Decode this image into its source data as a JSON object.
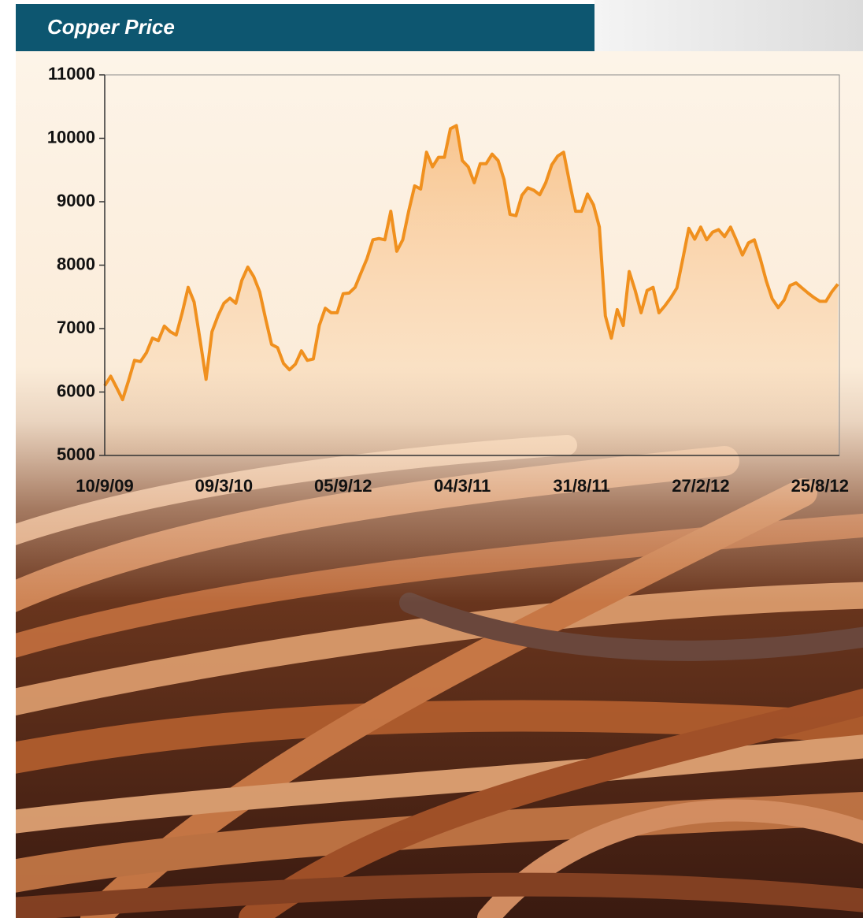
{
  "chart_data": {
    "type": "line",
    "title": "Copper Price",
    "categories": [
      "10/9/09",
      null,
      null,
      null,
      null,
      null,
      null,
      null,
      null,
      null,
      null,
      null,
      null,
      null,
      null,
      null,
      null,
      null,
      null,
      null,
      "09/3/10",
      null,
      null,
      null,
      null,
      null,
      null,
      null,
      null,
      null,
      null,
      null,
      null,
      null,
      null,
      null,
      null,
      null,
      null,
      null,
      "05/9/12",
      null,
      null,
      null,
      null,
      null,
      null,
      null,
      null,
      null,
      null,
      null,
      null,
      null,
      null,
      null,
      null,
      null,
      null,
      null,
      "04/3/11",
      null,
      null,
      null,
      null,
      null,
      null,
      null,
      null,
      null,
      null,
      null,
      null,
      null,
      null,
      null,
      null,
      null,
      null,
      null,
      "31/8/11",
      null,
      null,
      null,
      null,
      null,
      null,
      null,
      null,
      null,
      null,
      null,
      null,
      null,
      null,
      null,
      null,
      null,
      null,
      null,
      "27/2/12",
      null,
      null,
      null,
      null,
      null,
      null,
      null,
      null,
      null,
      null,
      null,
      null,
      null,
      null,
      null,
      null,
      null,
      null,
      null,
      "25/8/12",
      null,
      null,
      null
    ],
    "values": [
      6100,
      6250,
      6070,
      5880,
      6180,
      6500,
      6480,
      6620,
      6850,
      6810,
      7040,
      6950,
      6900,
      7250,
      7650,
      7420,
      6820,
      6200,
      6950,
      7200,
      7400,
      7480,
      7400,
      7760,
      7970,
      7820,
      7580,
      7150,
      6750,
      6700,
      6450,
      6350,
      6440,
      6650,
      6500,
      6520,
      7050,
      7320,
      7250,
      7250,
      7550,
      7560,
      7650,
      7880,
      8100,
      8400,
      8420,
      8400,
      8850,
      8220,
      8400,
      8850,
      9250,
      9200,
      9780,
      9550,
      9700,
      9700,
      10150,
      10200,
      9650,
      9550,
      9300,
      9600,
      9600,
      9750,
      9650,
      9350,
      8800,
      8780,
      9100,
      9220,
      9180,
      9110,
      9300,
      9580,
      9720,
      9780,
      9300,
      8850,
      8850,
      9120,
      8950,
      8600,
      7200,
      6850,
      7300,
      7050,
      7900,
      7600,
      7250,
      7600,
      7650,
      7250,
      7360,
      7490,
      7640,
      8100,
      8580,
      8410,
      8600,
      8400,
      8520,
      8560,
      8450,
      8600,
      8390,
      8160,
      8350,
      8400,
      8100,
      7750,
      7470,
      7330,
      7450,
      7680,
      7720,
      7640,
      7560,
      7490,
      7430,
      7430,
      7580,
      7700
    ],
    "color": "#f0901e",
    "ylim": [
      5000,
      11000
    ],
    "yticks": [
      5000,
      6000,
      7000,
      8000,
      9000,
      10000,
      11000
    ]
  }
}
